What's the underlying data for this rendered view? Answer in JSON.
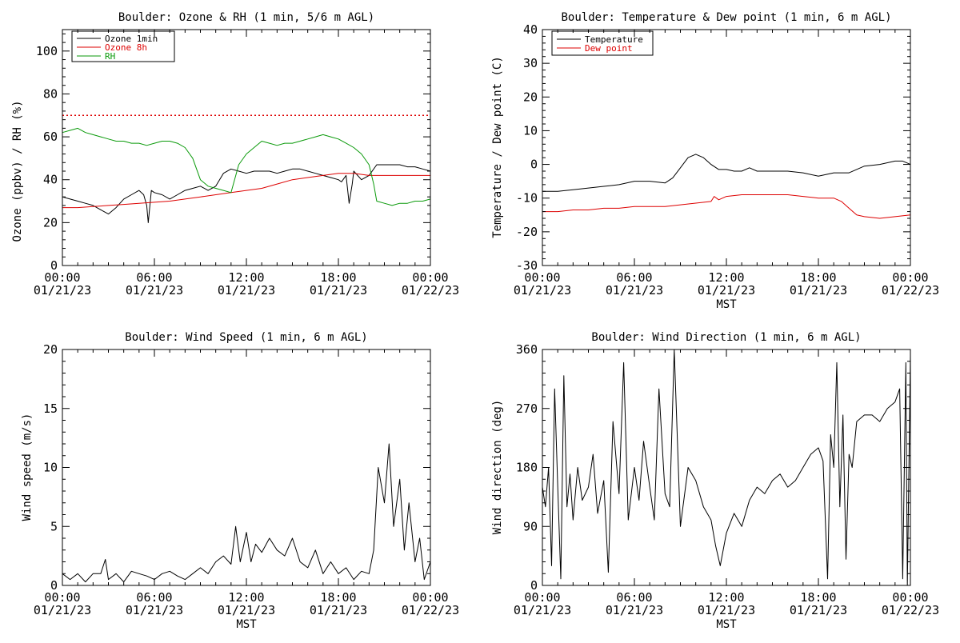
{
  "colors": {
    "black": "#000000",
    "red": "#dd0000",
    "green": "#0a9a0a"
  },
  "chart_data": [
    {
      "type": "line",
      "title": "Boulder: Ozone & RH (1 min, 5/6 m AGL)",
      "xlabel": "",
      "ylabel": "Ozone (ppbv) / RH (%)",
      "xlim": [
        0,
        24
      ],
      "ylim": [
        0,
        110
      ],
      "yticks": [
        0,
        20,
        40,
        60,
        80,
        100
      ],
      "xtick_labels": [
        [
          "00:00",
          "01/21/23"
        ],
        [
          "06:00",
          "01/21/23"
        ],
        [
          "12:00",
          "01/21/23"
        ],
        [
          "18:00",
          "01/21/23"
        ],
        [
          "00:00",
          "01/22/23"
        ]
      ],
      "reference_line": {
        "y": 70,
        "style": "dotted",
        "color": "#dd0000"
      },
      "legend": [
        "Ozone 1min",
        "Ozone 8h",
        "RH"
      ],
      "series": [
        {
          "name": "Ozone 1min",
          "color": "#000000",
          "x": [
            0,
            0.5,
            1,
            1.5,
            2,
            2.5,
            3,
            3.5,
            4,
            4.5,
            5,
            5.3,
            5.5,
            5.6,
            5.8,
            6,
            6.5,
            7,
            7.5,
            8,
            8.5,
            9,
            9.5,
            10,
            10.5,
            11,
            11.5,
            12,
            12.5,
            13,
            13.5,
            14,
            14.5,
            15,
            15.5,
            16,
            16.5,
            17,
            17.5,
            18,
            18.2,
            18.5,
            18.7,
            18.9,
            19,
            19.5,
            20,
            20.5,
            21,
            21.5,
            22,
            22.5,
            23,
            23.5,
            24
          ],
          "y": [
            32,
            31,
            30,
            29,
            28,
            26,
            24,
            27,
            31,
            33,
            35,
            33,
            28,
            20,
            35,
            34,
            33,
            31,
            33,
            35,
            36,
            37,
            35,
            37,
            43,
            45,
            44,
            43,
            44,
            44,
            44,
            43,
            44,
            45,
            45,
            44,
            43,
            42,
            41,
            40,
            39,
            42,
            29,
            38,
            44,
            40,
            42,
            47,
            47,
            47,
            47,
            46,
            46,
            45,
            44
          ]
        },
        {
          "name": "Ozone 8h",
          "color": "#dd0000",
          "x": [
            0,
            1,
            2,
            3,
            4,
            5,
            6,
            7,
            8,
            9,
            10,
            11,
            12,
            13,
            14,
            15,
            16,
            17,
            18,
            19,
            20,
            21,
            22,
            23,
            24
          ],
          "y": [
            27,
            27,
            27.5,
            28,
            28.5,
            29,
            29.5,
            30,
            31,
            32,
            33,
            34,
            35,
            36,
            38,
            40,
            41,
            42,
            43,
            43,
            42,
            42,
            42,
            42,
            42
          ]
        },
        {
          "name": "RH",
          "color": "#0a9a0a",
          "x": [
            0,
            0.5,
            1,
            1.5,
            2,
            2.5,
            3,
            3.5,
            4,
            4.5,
            5,
            5.5,
            6,
            6.5,
            7,
            7.5,
            8,
            8.5,
            9,
            9.5,
            10,
            10.5,
            11,
            11.5,
            12,
            12.5,
            13,
            13.5,
            14,
            14.5,
            15,
            15.5,
            16,
            16.5,
            17,
            17.5,
            18,
            18.5,
            19,
            19.5,
            20,
            20.3,
            20.5,
            21,
            21.5,
            22,
            22.5,
            23,
            23.5,
            24
          ],
          "y": [
            62,
            63,
            64,
            62,
            61,
            60,
            59,
            58,
            58,
            57,
            57,
            56,
            57,
            58,
            58,
            57,
            55,
            50,
            40,
            37,
            36,
            35,
            34,
            47,
            52,
            55,
            58,
            57,
            56,
            57,
            57,
            58,
            59,
            60,
            61,
            60,
            59,
            57,
            55,
            52,
            47,
            38,
            30,
            29,
            28,
            29,
            29,
            30,
            30,
            31
          ]
        }
      ]
    },
    {
      "type": "line",
      "title": "Boulder: Temperature & Dew point (1 min, 6 m AGL)",
      "xlabel": "MST",
      "ylabel": "Temperature / Dew point (C)",
      "xlim": [
        0,
        24
      ],
      "ylim": [
        -30,
        40
      ],
      "yticks": [
        -30,
        -20,
        -10,
        0,
        10,
        20,
        30,
        40
      ],
      "xtick_labels": [
        [
          "00:00",
          "01/21/23"
        ],
        [
          "06:00",
          "01/21/23"
        ],
        [
          "12:00",
          "01/21/23"
        ],
        [
          "18:00",
          "01/21/23"
        ],
        [
          "00:00",
          "01/22/23"
        ]
      ],
      "legend": [
        "Temperature",
        "Dew point"
      ],
      "series": [
        {
          "name": "Temperature",
          "color": "#000000",
          "x": [
            0,
            1,
            2,
            3,
            4,
            5,
            6,
            7,
            8,
            8.5,
            9,
            9.5,
            10,
            10.5,
            11,
            11.5,
            12,
            12.5,
            13,
            13.5,
            14,
            15,
            16,
            17,
            18,
            19,
            20,
            21,
            22,
            23,
            23.5,
            24
          ],
          "y": [
            -8,
            -8,
            -7.5,
            -7,
            -6.5,
            -6,
            -5,
            -5,
            -5.5,
            -4,
            -1,
            2,
            3,
            2,
            0,
            -1.5,
            -1.5,
            -2,
            -2,
            -1,
            -2,
            -2,
            -2,
            -2.5,
            -3.5,
            -2.5,
            -2.5,
            -0.5,
            0,
            1,
            1,
            0
          ]
        },
        {
          "name": "Dew point",
          "color": "#dd0000",
          "x": [
            0,
            1,
            2,
            3,
            4,
            5,
            6,
            7,
            8,
            9,
            10,
            11,
            11.2,
            11.5,
            12,
            13,
            14,
            15,
            16,
            17,
            18,
            19,
            19.5,
            20,
            20.5,
            21,
            22,
            23,
            24
          ],
          "y": [
            -14,
            -14,
            -13.5,
            -13.5,
            -13,
            -13,
            -12.5,
            -12.5,
            -12.5,
            -12,
            -11.5,
            -11,
            -9.5,
            -10.5,
            -9.5,
            -9,
            -9,
            -9,
            -9,
            -9.5,
            -10,
            -10,
            -11,
            -13,
            -15,
            -15.5,
            -16,
            -15.5,
            -15
          ]
        }
      ]
    },
    {
      "type": "line",
      "title": "Boulder: Wind Speed (1 min, 6 m AGL)",
      "xlabel": "MST",
      "ylabel": "Wind speed (m/s)",
      "xlim": [
        0,
        24
      ],
      "ylim": [
        0,
        20
      ],
      "yticks": [
        0,
        5,
        10,
        15,
        20
      ],
      "xtick_labels": [
        [
          "00:00",
          "01/21/23"
        ],
        [
          "06:00",
          "01/21/23"
        ],
        [
          "12:00",
          "01/21/23"
        ],
        [
          "18:00",
          "01/21/23"
        ],
        [
          "00:00",
          "01/22/23"
        ]
      ],
      "series": [
        {
          "name": "",
          "color": "#000000",
          "x": [
            0,
            0.5,
            1,
            1.5,
            2,
            2.5,
            2.8,
            3,
            3.5,
            4,
            4.5,
            5,
            5.5,
            6,
            6.5,
            7,
            7.5,
            8,
            8.5,
            9,
            9.5,
            10,
            10.5,
            11,
            11.3,
            11.6,
            12,
            12.3,
            12.6,
            13,
            13.5,
            14,
            14.5,
            15,
            15.5,
            16,
            16.5,
            17,
            17.5,
            18,
            18.5,
            19,
            19.5,
            20,
            20.3,
            20.6,
            21,
            21.3,
            21.6,
            22,
            22.3,
            22.6,
            23,
            23.3,
            23.6,
            24
          ],
          "y": [
            1,
            0.5,
            1,
            0.3,
            1,
            1,
            2.2,
            0.5,
            1,
            0.3,
            1.2,
            1,
            0.8,
            0.5,
            1,
            1.2,
            0.8,
            0.5,
            1,
            1.5,
            1,
            2,
            2.5,
            1.8,
            5,
            2,
            4.5,
            2,
            3.5,
            2.8,
            4,
            3,
            2.5,
            4,
            2,
            1.5,
            3,
            1,
            2,
            1,
            1.5,
            0.5,
            1.2,
            1,
            3,
            10,
            7,
            12,
            5,
            9,
            3,
            7,
            2,
            4,
            0.5,
            2
          ]
        }
      ]
    },
    {
      "type": "line",
      "title": "Boulder: Wind Direction (1 min, 6 m AGL)",
      "xlabel": "MST",
      "ylabel": "Wind direction (deg)",
      "xlim": [
        0,
        24
      ],
      "ylim": [
        0,
        360
      ],
      "yticks": [
        0,
        90,
        180,
        270,
        360
      ],
      "xtick_labels": [
        [
          "00:00",
          "01/21/23"
        ],
        [
          "06:00",
          "01/21/23"
        ],
        [
          "12:00",
          "01/21/23"
        ],
        [
          "18:00",
          "01/21/23"
        ],
        [
          "00:00",
          "01/22/23"
        ]
      ],
      "series": [
        {
          "name": "",
          "color": "#000000",
          "x": [
            0,
            0.2,
            0.4,
            0.6,
            0.8,
            1,
            1.2,
            1.4,
            1.6,
            1.8,
            2,
            2.3,
            2.6,
            3,
            3.3,
            3.6,
            4,
            4.3,
            4.6,
            5,
            5.3,
            5.6,
            6,
            6.3,
            6.6,
            7,
            7.3,
            7.6,
            8,
            8.3,
            8.6,
            9,
            9.5,
            10,
            10.5,
            11,
            11.3,
            11.6,
            12,
            12.5,
            13,
            13.5,
            14,
            14.5,
            15,
            15.5,
            16,
            16.5,
            17,
            17.5,
            18,
            18.3,
            18.6,
            18.8,
            19,
            19.2,
            19.4,
            19.6,
            19.8,
            20,
            20.2,
            20.5,
            21,
            21.5,
            22,
            22.5,
            23,
            23.3,
            23.5,
            23.7,
            23.8,
            24
          ],
          "y": [
            150,
            120,
            180,
            30,
            300,
            150,
            10,
            320,
            120,
            170,
            100,
            180,
            130,
            150,
            200,
            110,
            160,
            20,
            250,
            140,
            340,
            100,
            180,
            130,
            220,
            150,
            100,
            300,
            140,
            120,
            360,
            90,
            180,
            160,
            120,
            100,
            60,
            30,
            80,
            110,
            90,
            130,
            150,
            140,
            160,
            170,
            150,
            160,
            180,
            200,
            210,
            190,
            10,
            230,
            180,
            340,
            120,
            260,
            40,
            200,
            180,
            250,
            260,
            260,
            250,
            270,
            280,
            300,
            10,
            340,
            0,
            350
          ]
        }
      ]
    }
  ],
  "legend_labels": {
    "ozone_1min": "Ozone 1min",
    "ozone_8h": "Ozone 8h",
    "rh": "RH",
    "temperature": "Temperature",
    "dew_point": "Dew point"
  }
}
